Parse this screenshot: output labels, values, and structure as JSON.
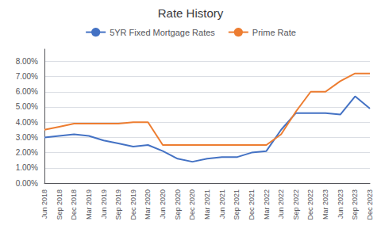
{
  "chart_data": {
    "type": "line",
    "title": "Rate History",
    "categories": [
      "Jun 2018",
      "Sep 2018",
      "Dec 2018",
      "Mar 2019",
      "Jun 2019",
      "Sep 2019",
      "Dec 2019",
      "Mar 2020",
      "Jun 2020",
      "Sep 2020",
      "Dec 2020",
      "Mar 2021",
      "Jun 2021",
      "Sep 2021",
      "Dec 2021",
      "Mar 2022",
      "Jun 2022",
      "Sep 2022",
      "Dec 2022",
      "Mar 2023",
      "Jun 2023",
      "Sep 2023",
      "Dec 2023"
    ],
    "series": [
      {
        "name": "5YR Fixed Mortgage Rates",
        "color": "#4472c4",
        "values": [
          0.03,
          0.031,
          0.032,
          0.031,
          0.028,
          0.026,
          0.024,
          0.025,
          0.021,
          0.016,
          0.014,
          0.016,
          0.017,
          0.017,
          0.02,
          0.021,
          0.035,
          0.046,
          0.046,
          0.046,
          0.045,
          0.057,
          0.049
        ]
      },
      {
        "name": "Prime Rate",
        "color": "#ed7d31",
        "values": [
          0.035,
          0.037,
          0.039,
          0.039,
          0.039,
          0.039,
          0.04,
          0.04,
          0.025,
          0.025,
          0.025,
          0.025,
          0.025,
          0.025,
          0.025,
          0.025,
          0.032,
          0.047,
          0.06,
          0.06,
          0.067,
          0.072,
          0.072
        ]
      }
    ],
    "ylim": [
      0.0,
      0.088
    ],
    "yticks": [
      {
        "value": 0.0,
        "label": "0.00%"
      },
      {
        "value": 0.01,
        "label": "1.00%"
      },
      {
        "value": 0.02,
        "label": "2.00%"
      },
      {
        "value": 0.03,
        "label": "3.00%"
      },
      {
        "value": 0.04,
        "label": "4.00%"
      },
      {
        "value": 0.05,
        "label": "5.00%"
      },
      {
        "value": 0.06,
        "label": "6.00%"
      },
      {
        "value": 0.07,
        "label": "7.00%"
      },
      {
        "value": 0.08,
        "label": "8.00%"
      }
    ],
    "grid": true,
    "legend": "top"
  }
}
